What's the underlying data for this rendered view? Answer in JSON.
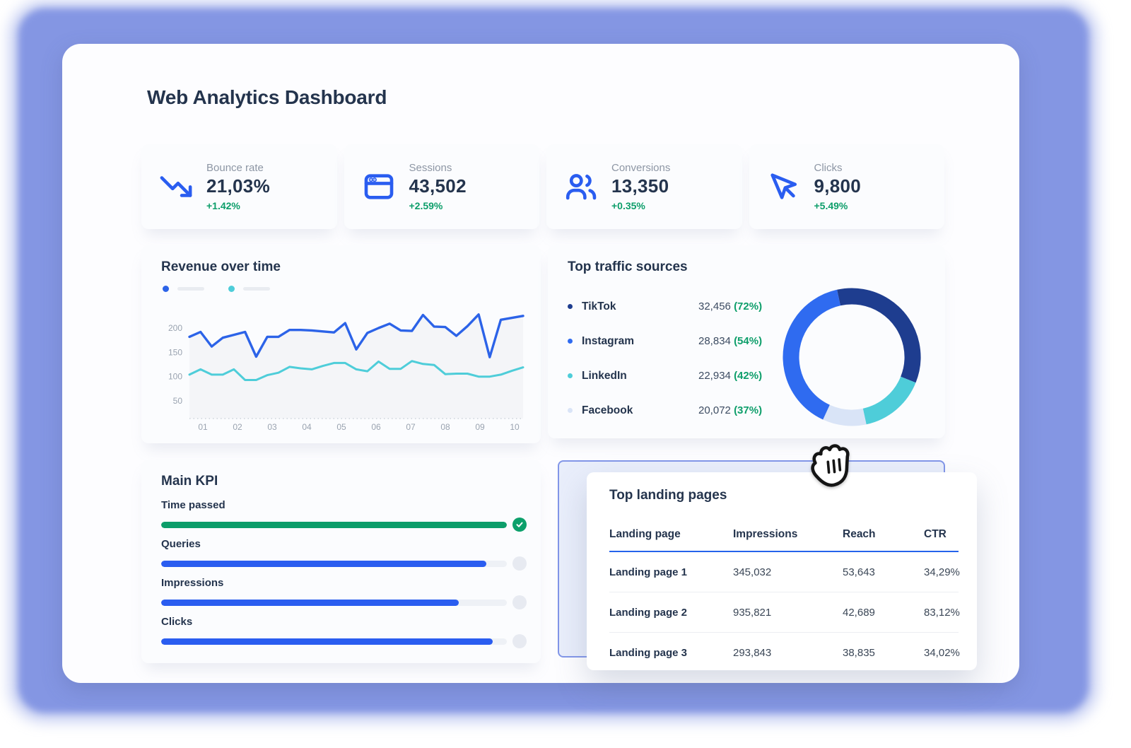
{
  "colors": {
    "accent_blue": "#2a5df0",
    "line_blue": "#2c63e8",
    "navy": "#1e3d8f",
    "teal": "#4ecdd9",
    "pale_blue": "#d9e4f7",
    "green": "#0d9e6a",
    "text_dark": "#24344d",
    "frame_blue": "#8496e3",
    "header_underline": "#2563eb"
  },
  "page_title": "Web Analytics Dashboard",
  "stats": [
    {
      "icon": "trending-down-icon",
      "label": "Bounce rate",
      "value": "21,03%",
      "delta": "+1.42%"
    },
    {
      "icon": "browser-icon",
      "label": "Sessions",
      "value": "43,502",
      "delta": "+2.59%"
    },
    {
      "icon": "users-icon",
      "label": "Conversions",
      "value": "13,350",
      "delta": "+0.35%"
    },
    {
      "icon": "cursor-icon",
      "label": "Clicks",
      "value": "9,800",
      "delta": "+5.49%"
    }
  ],
  "revenue": {
    "title": "Revenue over time"
  },
  "traffic": {
    "title": "Top traffic sources",
    "sources": [
      {
        "name": "TikTok",
        "value": "32,456",
        "pct": "(72%)",
        "color": "#1e3d8f"
      },
      {
        "name": "Instagram",
        "value": "28,834",
        "pct": "(54%)",
        "color": "#2f6bf0"
      },
      {
        "name": "LinkedIn",
        "value": "22,934",
        "pct": "(42%)",
        "color": "#4ecdd9"
      },
      {
        "name": "Facebook",
        "value": "20,072",
        "pct": "(37%)",
        "color": "#d9e4f7"
      }
    ]
  },
  "main_kpi": {
    "title": "Main KPI",
    "bars": [
      {
        "label": "Time passed",
        "percent": 100,
        "color": "#0d9e6a",
        "complete": true
      },
      {
        "label": "Queries",
        "percent": 94,
        "color": "#2a5df0",
        "complete": false
      },
      {
        "label": "Impressions",
        "percent": 86,
        "color": "#2a5df0",
        "complete": false
      },
      {
        "label": "Clicks",
        "percent": 96,
        "color": "#2a5df0",
        "complete": false
      }
    ]
  },
  "landing": {
    "title": "Top landing pages",
    "columns": [
      "Landing page",
      "Impressions",
      "Reach",
      "CTR"
    ],
    "rows": [
      [
        "Landing page 1",
        "345,032",
        "53,643",
        "34,29%"
      ],
      [
        "Landing page 2",
        "935,821",
        "42,689",
        "83,12%"
      ],
      [
        "Landing page 3",
        "293,843",
        "38,835",
        "34,02%"
      ]
    ]
  },
  "chart_data": [
    {
      "type": "line",
      "title": "Revenue over time",
      "x_labels": [
        "01",
        "02",
        "03",
        "04",
        "05",
        "06",
        "07",
        "08",
        "09",
        "10"
      ],
      "y_ticks": [
        200,
        150,
        100,
        50
      ],
      "ylim": [
        13,
        235
      ],
      "grid": false,
      "legend_position": "top-left",
      "area_fill": "#f4f5f8",
      "series": [
        {
          "name": "revenue-series-blue",
          "color": "#2c63e8",
          "values": [
            182,
            192,
            162,
            180,
            186,
            192,
            141,
            182,
            182,
            196,
            196,
            195,
            193,
            191,
            210,
            156,
            190,
            200,
            209,
            195,
            194,
            227,
            203,
            202,
            184,
            204,
            228,
            140,
            217,
            221,
            225
          ]
        },
        {
          "name": "revenue-series-teal",
          "color": "#4ecdd9",
          "values": [
            104,
            115,
            104,
            104,
            115,
            93,
            93,
            103,
            108,
            120,
            117,
            115,
            122,
            128,
            128,
            115,
            111,
            131,
            116,
            116,
            132,
            126,
            124,
            105,
            106,
            106,
            100,
            100,
            104,
            112,
            119
          ]
        }
      ]
    },
    {
      "type": "donut",
      "title": "Top traffic sources",
      "start_deg": -12,
      "segments": [
        {
          "label": "TikTok",
          "color": "#1e3d8f",
          "deg": 124
        },
        {
          "label": "LinkedIn",
          "color": "#4ecdd9",
          "deg": 56
        },
        {
          "label": "Facebook",
          "color": "#d9e4f7",
          "deg": 37
        },
        {
          "label": "Instagram",
          "color": "#2f6bf0",
          "deg": 143
        }
      ]
    }
  ]
}
